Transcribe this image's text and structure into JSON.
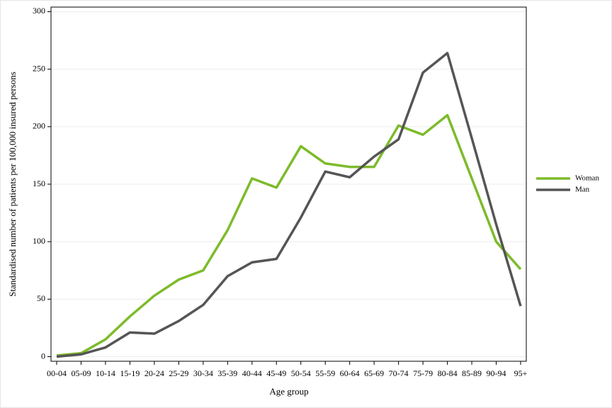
{
  "chart_data": {
    "type": "line",
    "xlabel": "Age group",
    "ylabel": "Standardised number of patients per 100,000 insured persons",
    "categories": [
      "00-04",
      "05-09",
      "10-14",
      "15-19",
      "20-24",
      "25-29",
      "30-34",
      "35-39",
      "40-44",
      "45-49",
      "50-54",
      "55-59",
      "60-64",
      "65-69",
      "70-74",
      "75-79",
      "80-84",
      "85-89",
      "90-94",
      "95+"
    ],
    "series": [
      {
        "name": "Woman",
        "color": "#7dbb2a",
        "values": [
          1,
          3,
          15,
          35,
          53,
          67,
          75,
          110,
          155,
          147,
          183,
          168,
          165,
          165,
          201,
          193,
          210,
          155,
          100,
          76
        ]
      },
      {
        "name": "Man",
        "color": "#555555",
        "values": [
          0,
          2,
          8,
          21,
          20,
          31,
          45,
          70,
          82,
          85,
          121,
          161,
          156,
          174,
          189,
          247,
          264,
          190,
          115,
          44
        ]
      }
    ],
    "ylim": [
      -4,
      304
    ],
    "yticks": [
      0,
      50,
      100,
      150,
      200,
      250,
      300
    ],
    "grid": true,
    "legend": "right"
  }
}
